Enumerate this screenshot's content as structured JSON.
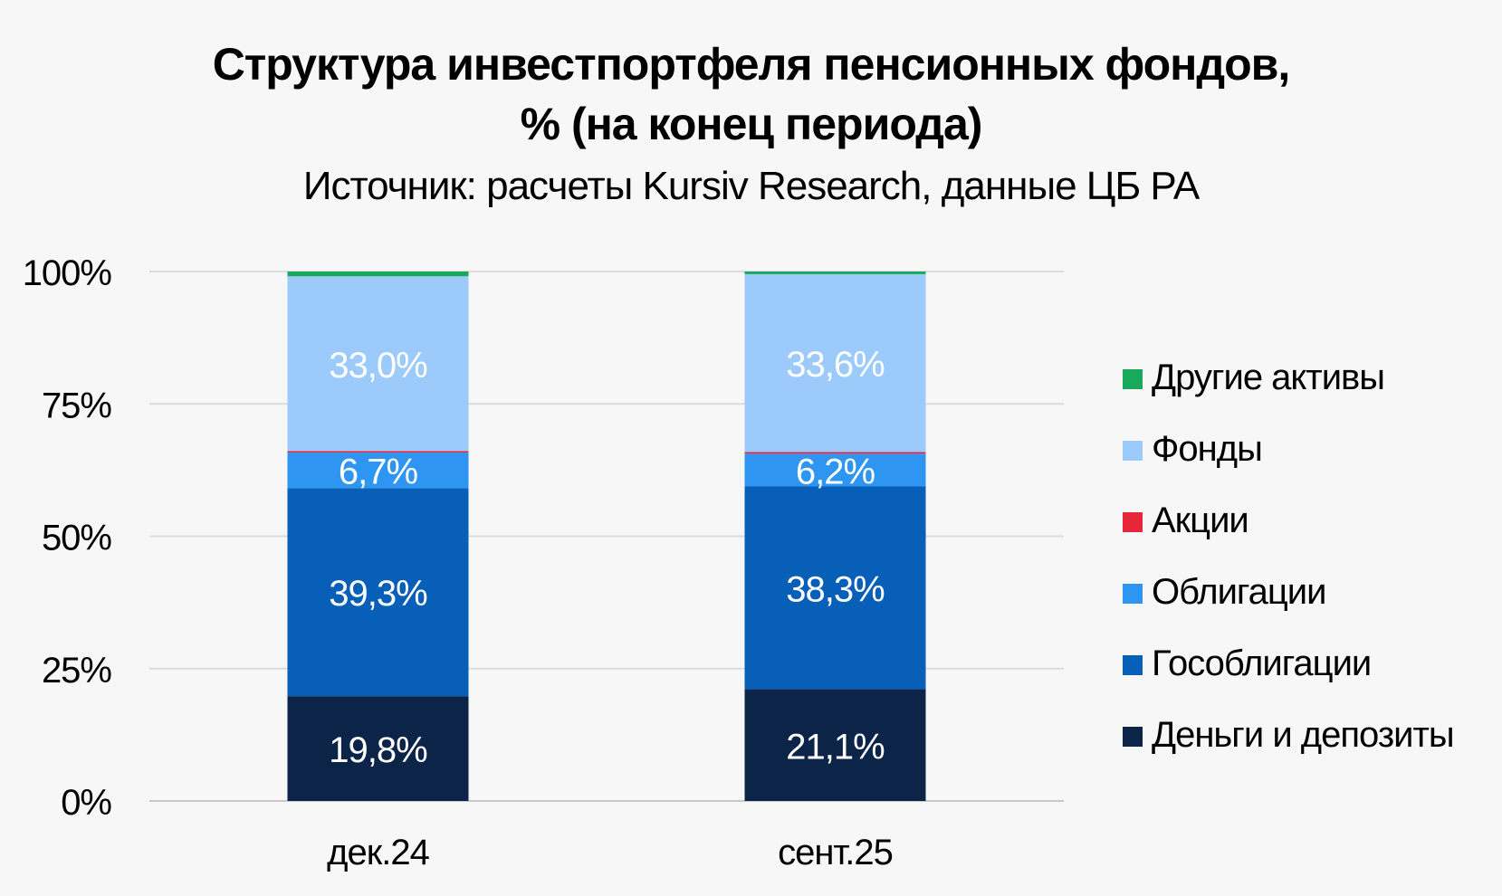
{
  "chart_data": {
    "type": "bar",
    "stacked": true,
    "title": "Структура инвестпортфеля пенсионных фондов, % (на конец периода)",
    "title_lines": [
      "Структура инвестпортфеля пенсионных фондов,",
      "% (на конец периода)"
    ],
    "subtitle": "Источник: расчеты Kursiv Research, данные ЦБ РА",
    "categories": [
      "дек.24",
      "сент.25"
    ],
    "ylim": [
      0,
      100
    ],
    "y_ticks": [
      "0%",
      "25%",
      "50%",
      "75%",
      "100%"
    ],
    "y_tick_values": [
      0,
      25,
      50,
      75,
      100
    ],
    "grid": true,
    "legend_position": "right",
    "series": [
      {
        "name": "Деньги и депозиты",
        "color": "#0b2447",
        "values": [
          19.8,
          21.1
        ],
        "labels": [
          "19,8%",
          "21,1%"
        ]
      },
      {
        "name": "Гособлигации",
        "color": "#075fb8",
        "values": [
          39.3,
          38.3
        ],
        "labels": [
          "39,3%",
          "38,3%"
        ]
      },
      {
        "name": "Облигации",
        "color": "#2e96f2",
        "values": [
          6.7,
          6.2
        ],
        "labels": [
          "6,7%",
          "6,2%"
        ]
      },
      {
        "name": "Акции",
        "color": "#e8263a",
        "values": [
          0.3,
          0.3
        ],
        "labels": [
          "",
          ""
        ]
      },
      {
        "name": "Фонды",
        "color": "#9ccbfb",
        "values": [
          33.0,
          33.6
        ],
        "labels": [
          "33,0%",
          "33,6%"
        ]
      },
      {
        "name": "Другие активы",
        "color": "#1aa85a",
        "values": [
          0.9,
          0.5
        ],
        "labels": [
          "",
          ""
        ]
      }
    ]
  }
}
